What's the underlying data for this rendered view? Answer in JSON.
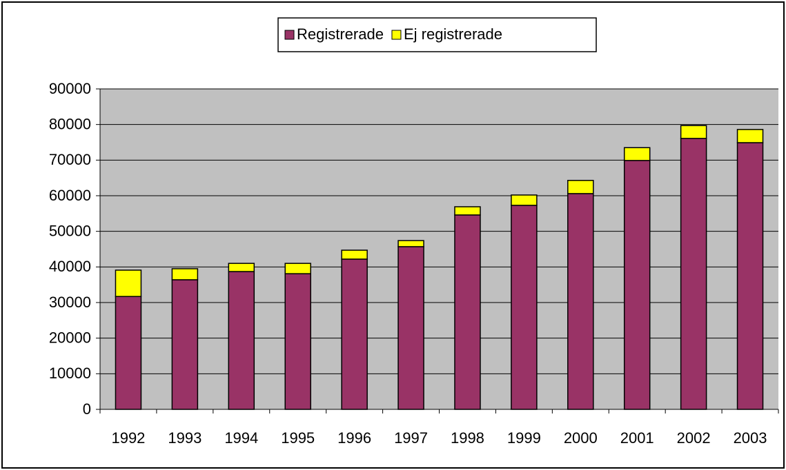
{
  "chart_data": {
    "type": "stacked_bar",
    "categories": [
      "1992",
      "1993",
      "1994",
      "1995",
      "1996",
      "1997",
      "1998",
      "1999",
      "2000",
      "2001",
      "2002",
      "2003"
    ],
    "series": [
      {
        "name": "Registrerade",
        "color": "#993366",
        "values": [
          31700,
          36400,
          38700,
          38100,
          42200,
          45700,
          54600,
          57300,
          60600,
          69900,
          76100,
          74900
        ]
      },
      {
        "name": "Ej registrerade",
        "color": "#ffff00",
        "values": [
          7400,
          3100,
          2300,
          2900,
          2500,
          1700,
          2300,
          2900,
          3700,
          3600,
          3600,
          3700
        ]
      }
    ],
    "ylim": [
      0,
      90000
    ],
    "yticks": [
      0,
      10000,
      20000,
      30000,
      40000,
      50000,
      60000,
      70000,
      80000,
      90000
    ],
    "grid": true,
    "legend": "top"
  }
}
